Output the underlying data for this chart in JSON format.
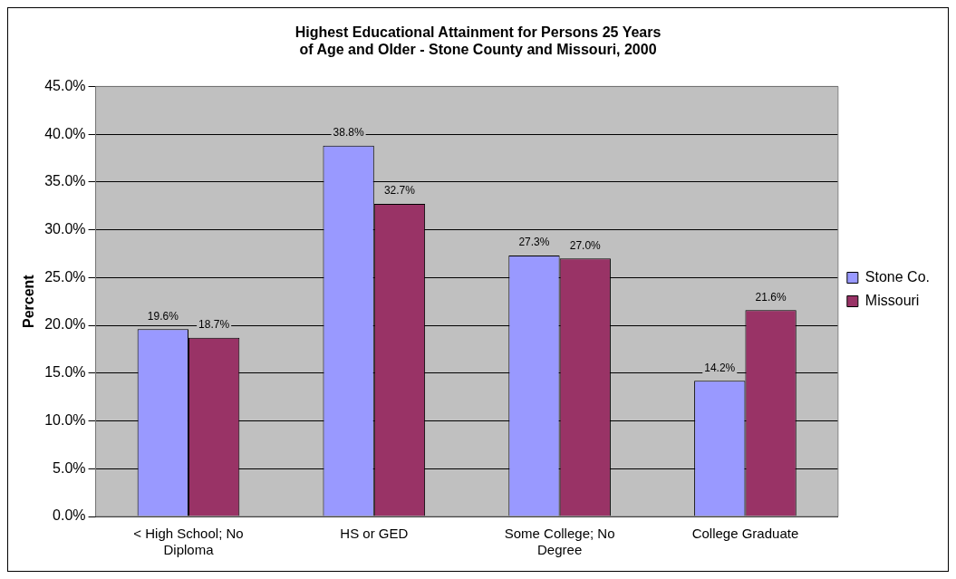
{
  "chart_data": {
    "type": "bar",
    "title": "Highest Educational Attainment for Persons 25 Years of Age and Older - Stone County and Missouri, 2000",
    "ylabel": "Percent",
    "categories": [
      "< High School; No Diploma",
      "HS or GED",
      "Some College; No Degree",
      "College Graduate"
    ],
    "series": [
      {
        "name": "Stone Co.",
        "color": "#9999ff",
        "values": [
          19.6,
          38.8,
          27.3,
          14.2
        ],
        "value_labels": [
          "19.6%",
          "38.8%",
          "27.3%",
          "14.2%"
        ]
      },
      {
        "name": "Missouri",
        "color": "#993366",
        "values": [
          18.7,
          32.7,
          27.0,
          21.6
        ],
        "value_labels": [
          "18.7%",
          "32.7%",
          "27.0%",
          "21.6%"
        ]
      }
    ],
    "ylim": [
      0,
      45
    ],
    "yticks": [
      {
        "value": 0,
        "label": "0.0%"
      },
      {
        "value": 5,
        "label": "5.0%"
      },
      {
        "value": 10,
        "label": "10.0%"
      },
      {
        "value": 15,
        "label": "15.0%"
      },
      {
        "value": 20,
        "label": "20.0%"
      },
      {
        "value": 25,
        "label": "25.0%"
      },
      {
        "value": 30,
        "label": "30.0%"
      },
      {
        "value": 35,
        "label": "35.0%"
      },
      {
        "value": 40,
        "label": "40.0%"
      },
      {
        "value": 45,
        "label": "45.0%"
      }
    ],
    "grid": "y",
    "legend": "right"
  }
}
